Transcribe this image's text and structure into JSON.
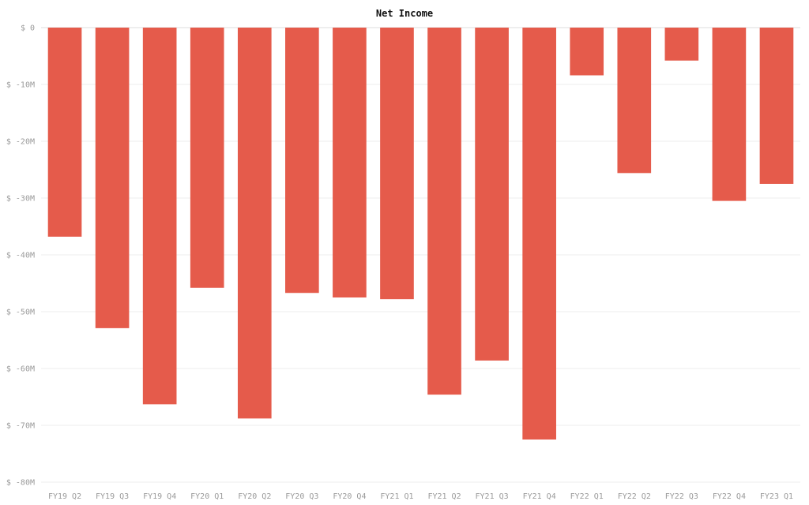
{
  "chart_data": {
    "type": "bar",
    "title": "Net Income",
    "xlabel": "",
    "ylabel": "",
    "categories": [
      "FY19 Q2",
      "FY19 Q3",
      "FY19 Q4",
      "FY20 Q1",
      "FY20 Q2",
      "FY20 Q3",
      "FY20 Q4",
      "FY21 Q1",
      "FY21 Q2",
      "FY21 Q3",
      "FY21 Q4",
      "FY22 Q1",
      "FY22 Q2",
      "FY22 Q3",
      "FY22 Q4",
      "FY23 Q1"
    ],
    "values": [
      -36.8,
      -52.9,
      -66.3,
      -45.8,
      -68.8,
      -46.7,
      -47.5,
      -47.8,
      -64.6,
      -58.6,
      -72.5,
      -8.4,
      -25.6,
      -5.8,
      -30.5,
      -27.5
    ],
    "ylim": [
      -80,
      0
    ],
    "yticks": [
      0,
      -10,
      -20,
      -30,
      -40,
      -50,
      -60,
      -70,
      -80
    ],
    "ytick_labels": [
      "$ 0",
      "$ -10M",
      "$ -20M",
      "$ -30M",
      "$ -40M",
      "$ -50M",
      "$ -60M",
      "$ -70M",
      "$ -80M"
    ],
    "bar_color": "#e55b4b",
    "grid": true,
    "legend": "none"
  }
}
